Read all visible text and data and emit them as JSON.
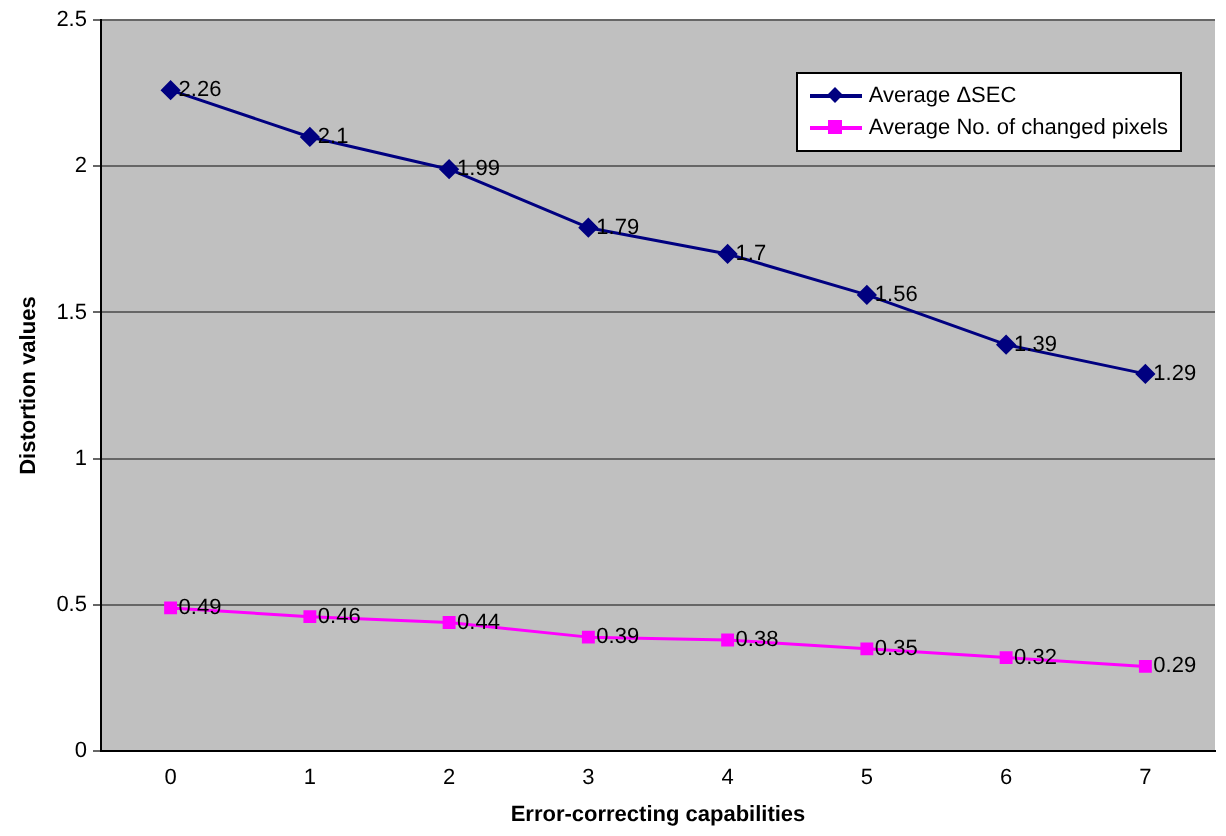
{
  "chart_data": {
    "type": "line",
    "xlabel": "Error-correcting capabilities",
    "ylabel": "Distortion values",
    "categories": [
      "0",
      "1",
      "2",
      "3",
      "4",
      "5",
      "6",
      "7"
    ],
    "series": [
      {
        "name": "Average ΔSEC",
        "color": "#000080",
        "marker": "diamond",
        "values": [
          2.26,
          2.1,
          1.99,
          1.79,
          1.7,
          1.56,
          1.39,
          1.29
        ]
      },
      {
        "name": "Average No. of changed pixels",
        "color": "#ff00ff",
        "marker": "square",
        "values": [
          0.49,
          0.46,
          0.44,
          0.39,
          0.38,
          0.35,
          0.32,
          0.29
        ]
      }
    ],
    "ylim": [
      0,
      2.5
    ],
    "yticks": [
      0,
      0.5,
      1,
      1.5,
      2,
      2.5
    ],
    "grid": "y",
    "legend": "top right",
    "data_labels": true
  }
}
